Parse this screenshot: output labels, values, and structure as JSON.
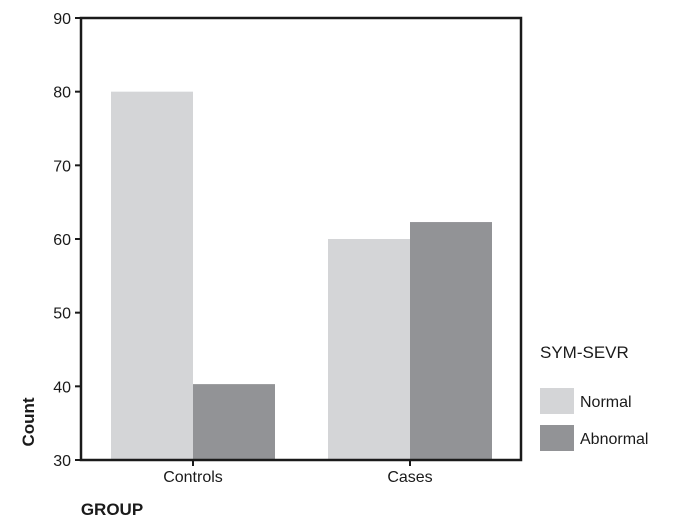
{
  "chart_data": {
    "type": "bar",
    "categories": [
      "Controls",
      "Cases"
    ],
    "series": [
      {
        "name": "Normal",
        "values": [
          80,
          60
        ],
        "color": "#d4d5d7"
      },
      {
        "name": "Abnormal",
        "values": [
          40.3,
          62.3
        ],
        "color": "#929396"
      }
    ],
    "xlabel": "GROUP",
    "ylabel": "Count",
    "ylim": [
      30,
      90
    ],
    "yticks": [
      30,
      40,
      50,
      60,
      70,
      80,
      90
    ],
    "legend_title": "SYM-SEVR",
    "legend_position": "right",
    "grid": false
  }
}
